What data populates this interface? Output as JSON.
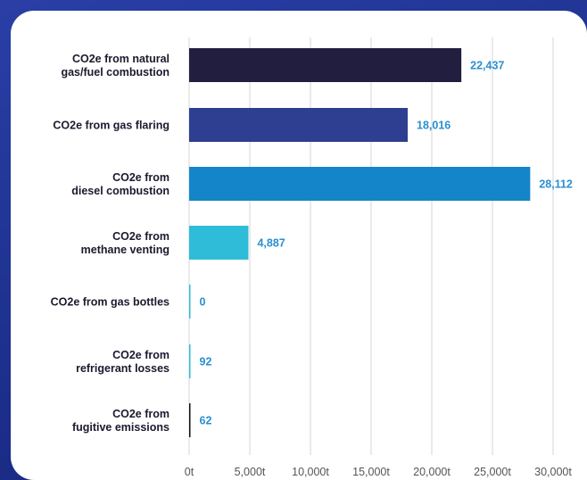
{
  "chart_data": {
    "type": "bar",
    "orientation": "horizontal",
    "categories": [
      [
        "CO2e from natural",
        "gas/fuel combustion"
      ],
      [
        "CO2e from gas flaring"
      ],
      [
        "CO2e from",
        "diesel combustion"
      ],
      [
        "CO2e from",
        "methane venting"
      ],
      [
        "CO2e from gas bottles"
      ],
      [
        "CO2e from",
        "refrigerant losses"
      ],
      [
        "CO2e from",
        "fugitive emissions"
      ]
    ],
    "values": [
      22437,
      18016,
      28112,
      4887,
      0,
      92,
      62
    ],
    "value_labels": [
      "22,437",
      "18,016",
      "28,112",
      "4,887",
      "0",
      "92",
      "62"
    ],
    "bar_colors": [
      "#221e3f",
      "#2e3f92",
      "#1585c9",
      "#2fbcd8",
      "#2fbcd8",
      "#2fbcd8",
      "#111111"
    ],
    "xlim": [
      0,
      30000
    ],
    "x_ticks": [
      0,
      5000,
      10000,
      15000,
      20000,
      25000,
      30000
    ],
    "x_tick_labels": [
      "0t",
      "5,000t",
      "10,000t",
      "15,000t",
      "20,000t",
      "25,000t",
      "30,000t"
    ],
    "grid": true,
    "title": "",
    "xlabel": "",
    "ylabel": ""
  }
}
